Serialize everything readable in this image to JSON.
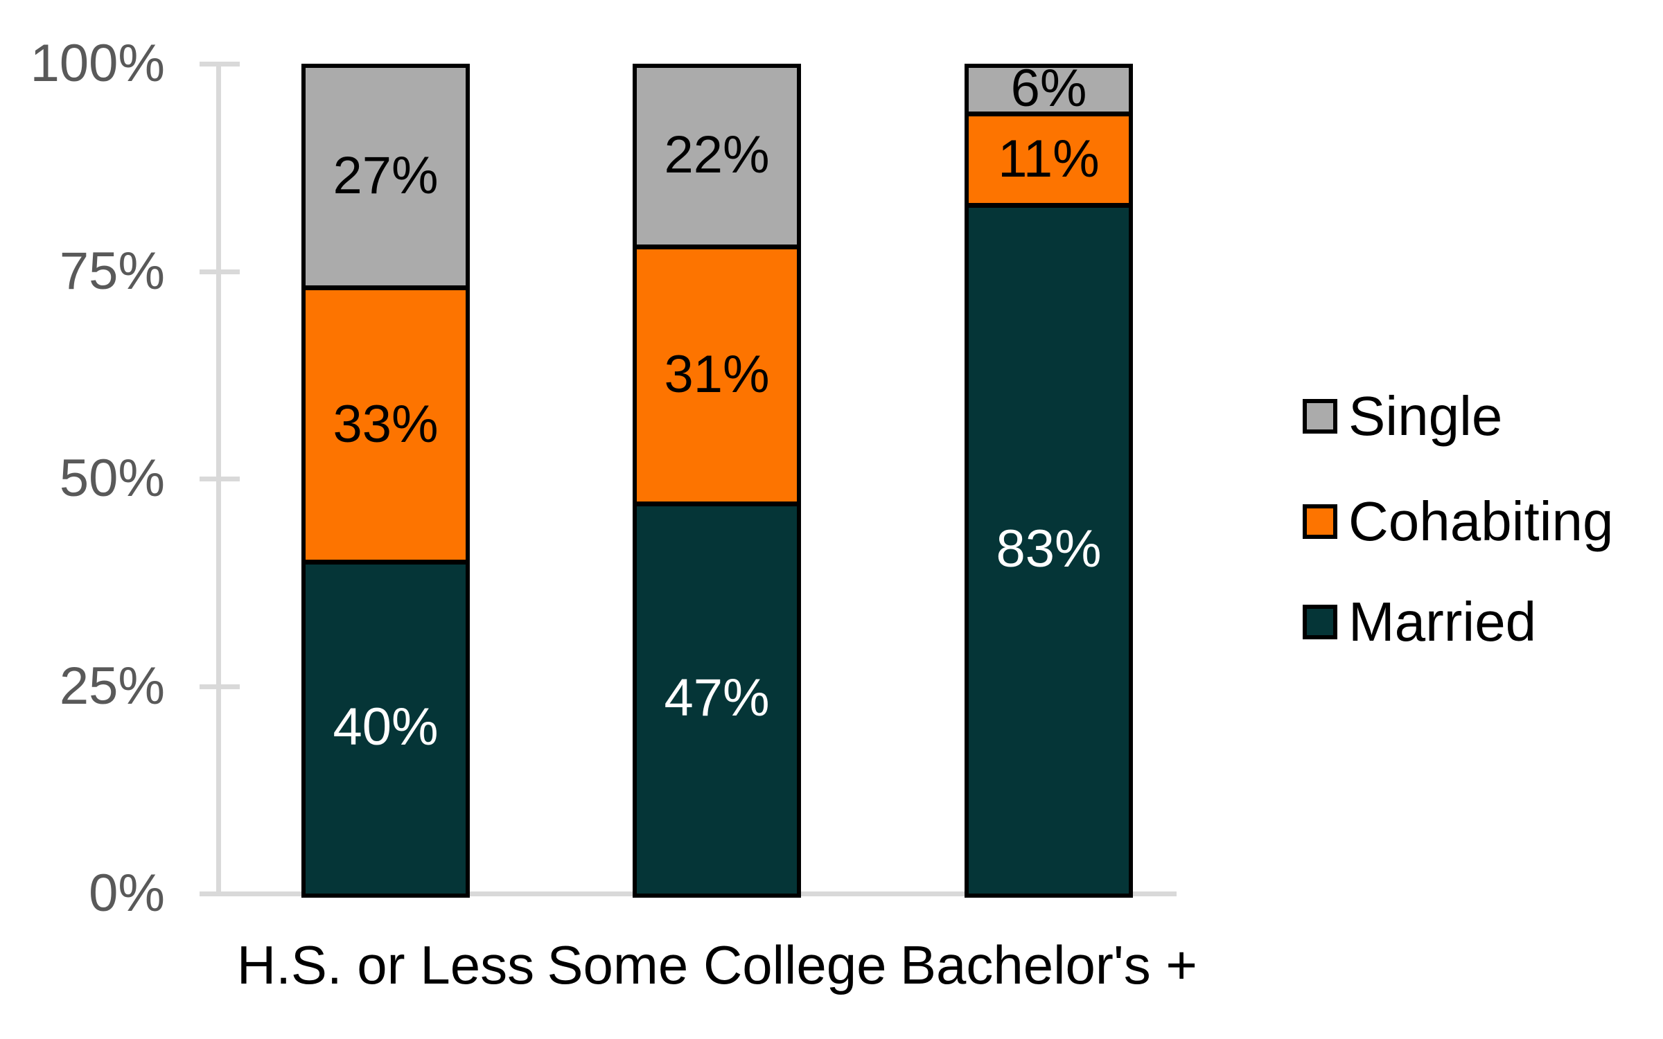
{
  "chart_data": {
    "type": "bar",
    "stacked": true,
    "categories": [
      "H.S. or Less",
      "Some College",
      "Bachelor's +"
    ],
    "series": [
      {
        "name": "Married",
        "color": "#053537",
        "label_color": "#ffffff",
        "values": [
          40,
          47,
          83
        ]
      },
      {
        "name": "Cohabiting",
        "color": "#fd7400",
        "label_color": "#000000",
        "values": [
          33,
          31,
          11
        ]
      },
      {
        "name": "Single",
        "color": "#ababab",
        "label_color": "#000000",
        "values": [
          27,
          22,
          6
        ]
      }
    ],
    "data_labels": [
      [
        "40%",
        "47%",
        "83%"
      ],
      [
        "33%",
        "31%",
        "11%"
      ],
      [
        "27%",
        "22%",
        "6%"
      ]
    ],
    "value_suffix": "%",
    "y_ticks": [
      "0%",
      "25%",
      "50%",
      "75%",
      "100%"
    ],
    "ylim": [
      0,
      100
    ],
    "grid": false,
    "legend": [
      "Single",
      "Cohabiting",
      "Married"
    ],
    "legend_position": "right",
    "axis_line_color": "#d9d9d9",
    "tick_label_color": "#595959",
    "bar_border_color": "#000000"
  }
}
